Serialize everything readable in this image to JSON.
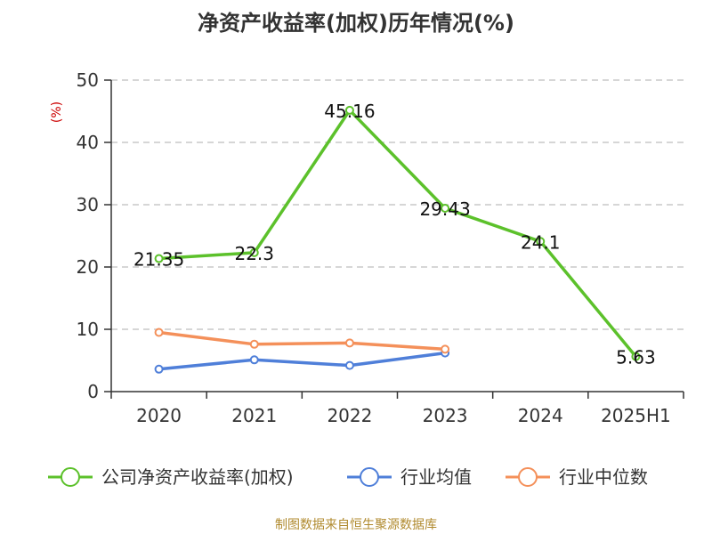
{
  "chart_data": {
    "type": "line",
    "title": "净资产收益率(加权)历年情况(%)",
    "ylabel": "(%)",
    "categories": [
      "2020",
      "2021",
      "2022",
      "2023",
      "2024",
      "2025H1"
    ],
    "ylim": [
      0,
      50
    ],
    "yticks": [
      0,
      10,
      20,
      30,
      40,
      50
    ],
    "grid": true,
    "legend_position": "bottom",
    "series": [
      {
        "name": "公司净资产收益率(加权)",
        "color": "#5cc12b",
        "values": [
          21.35,
          22.3,
          45.16,
          29.43,
          24.1,
          5.63
        ],
        "labels": [
          "21.35",
          "22.3",
          "45.16",
          "29.43",
          "24.1",
          "5.63"
        ]
      },
      {
        "name": "行业均值",
        "color": "#4f7fd9",
        "values": [
          3.6,
          5.1,
          4.2,
          6.2,
          null,
          null
        ]
      },
      {
        "name": "行业中位数",
        "color": "#f4905a",
        "values": [
          9.5,
          7.6,
          7.8,
          6.8,
          null,
          null
        ]
      }
    ]
  },
  "source": "制图数据来自恒生聚源数据库"
}
